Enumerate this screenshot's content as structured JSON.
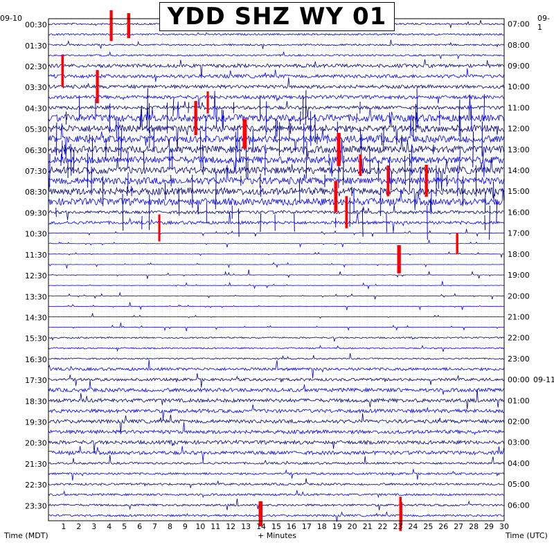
{
  "chart_data": {
    "type": "seismogram",
    "title": "YDD SHZ WY 01",
    "left_date": "09-10",
    "right_date": "09-1",
    "right_date_next": "09-11",
    "xlabel": "+ Minutes",
    "left_axis_label": "Time (MDT)",
    "right_axis_label": "Time (UTC)",
    "x_ticks": [
      1,
      2,
      3,
      4,
      5,
      6,
      7,
      8,
      9,
      10,
      11,
      12,
      13,
      14,
      15,
      16,
      17,
      18,
      19,
      20,
      21,
      22,
      23,
      24,
      25,
      26,
      27,
      28,
      29,
      30
    ],
    "xlim": [
      0,
      30
    ],
    "left_times": [
      "00:30",
      "01:30",
      "02:30",
      "03:30",
      "04:30",
      "05:30",
      "06:30",
      "07:30",
      "08:30",
      "09:30",
      "10:30",
      "11:30",
      "12:30",
      "13:30",
      "14:30",
      "15:30",
      "16:30",
      "17:30",
      "18:30",
      "19:30",
      "20:30",
      "21:30",
      "22:30",
      "23:30"
    ],
    "right_times": [
      "07:00",
      "08:00",
      "09:00",
      "10:00",
      "11:00",
      "12:00",
      "13:00",
      "14:00",
      "15:00",
      "16:00",
      "17:00",
      "18:00",
      "19:00",
      "20:00",
      "21:00",
      "22:00",
      "23:00",
      "00:00",
      "01:00",
      "02:00",
      "03:00",
      "04:00",
      "05:00",
      "06:00"
    ],
    "trace_colors": [
      "#000080",
      "#0000ff"
    ],
    "clip_color": "#ff0000",
    "grid": true
  }
}
